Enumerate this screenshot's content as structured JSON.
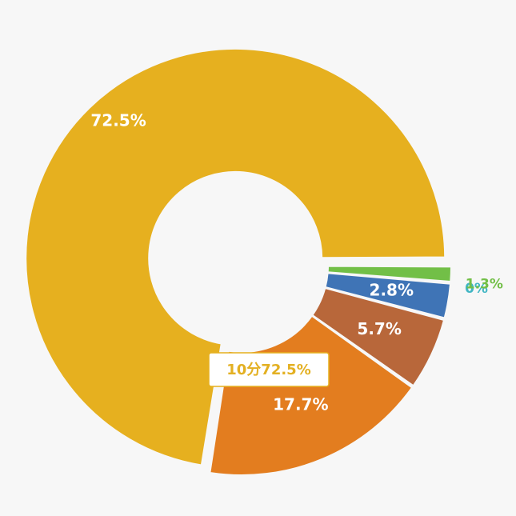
{
  "chart_data": {
    "type": "pie",
    "variant": "donut",
    "slices": [
      {
        "name": "slice-1",
        "value": 72.5,
        "label": "72.5%",
        "color": "#e6b01f",
        "exploded": true
      },
      {
        "name": "slice-2",
        "value": 17.7,
        "label": "17.7%",
        "color": "#e37d1f"
      },
      {
        "name": "slice-3",
        "value": 5.7,
        "label": "5.7%",
        "color": "#b8673a"
      },
      {
        "name": "slice-4",
        "value": 2.8,
        "label": "2.8%",
        "color": "#3f74b6"
      },
      {
        "name": "slice-5",
        "value": 0.0,
        "label": "0%",
        "color": "#41b6c4"
      },
      {
        "name": "slice-6",
        "value": 1.3,
        "label": "1.3%",
        "color": "#72bf47"
      }
    ],
    "callout": {
      "text": "10分72.5%",
      "slice": "slice-1"
    },
    "start_angle_deg": 0,
    "direction": "counterclockwise"
  }
}
